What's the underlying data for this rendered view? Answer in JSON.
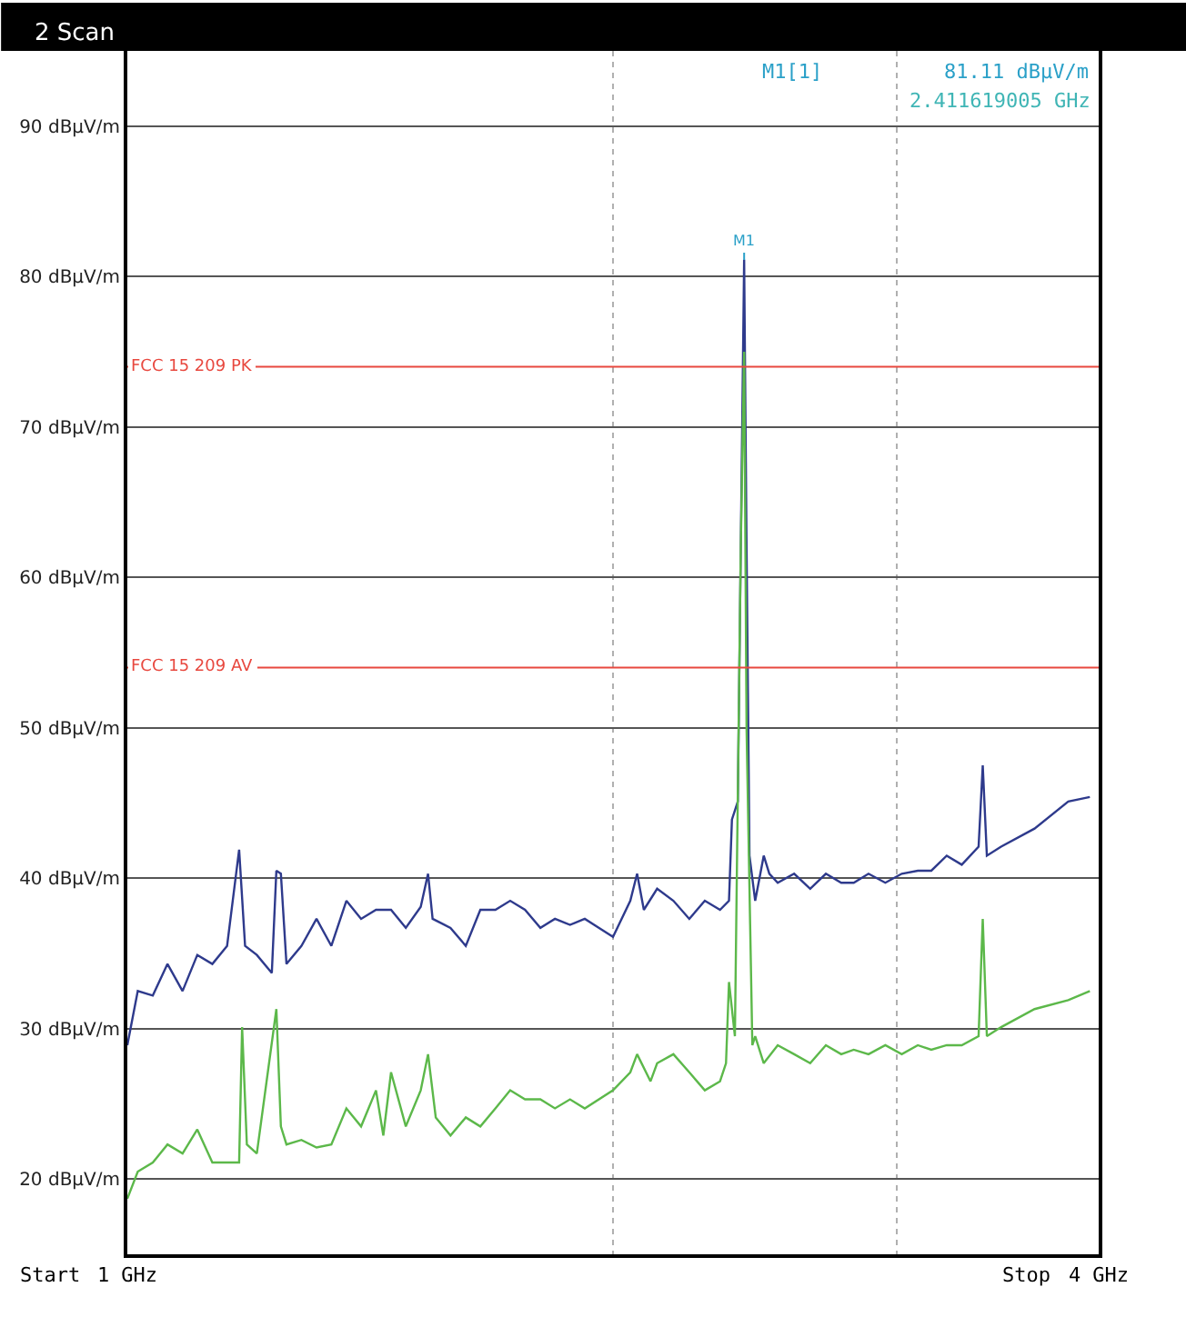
{
  "chart_data": {
    "type": "line",
    "title": "2 Scan",
    "xlim": [
      1,
      4
    ],
    "log": "x",
    "ylim": [
      15,
      95
    ],
    "xticks": [
      {
        "value": 1,
        "label": "1 GHz"
      },
      {
        "value": 2,
        "label": null
      },
      {
        "value": 3,
        "label": null
      },
      {
        "value": 4,
        "label": "4 GHz"
      }
    ],
    "yticks": [
      {
        "value": 20,
        "label": "20 dBµV/m"
      },
      {
        "value": 30,
        "label": "30 dBµV/m"
      },
      {
        "value": 40,
        "label": "40 dBµV/m"
      },
      {
        "value": 50,
        "label": "50 dBµV/m"
      },
      {
        "value": 60,
        "label": "60 dBµV/m"
      },
      {
        "value": 70,
        "label": "70 dBµV/m"
      },
      {
        "value": 80,
        "label": "80 dBµV/m"
      },
      {
        "value": 90,
        "label": "90 dBµV/m"
      }
    ],
    "grid": true,
    "marker": "none",
    "line_style": "solid",
    "series": [
      {
        "color": "#2e3a8c",
        "x": [
          1.0,
          1.015,
          1.037,
          1.059,
          1.082,
          1.105,
          1.129,
          1.153,
          1.173,
          1.183,
          1.203,
          1.229,
          1.237,
          1.245,
          1.255,
          1.282,
          1.31,
          1.338,
          1.367,
          1.396,
          1.426,
          1.457,
          1.488,
          1.52,
          1.536,
          1.546,
          1.586,
          1.621,
          1.655,
          1.691,
          1.727,
          1.764,
          1.803,
          1.841,
          1.881,
          1.921,
          2.0,
          2.05,
          2.07,
          2.09,
          2.13,
          2.18,
          2.23,
          2.28,
          2.33,
          2.36,
          2.37,
          2.39,
          2.4,
          2.4116,
          2.42,
          2.43,
          2.45,
          2.48,
          2.5,
          2.53,
          2.59,
          2.65,
          2.71,
          2.77,
          2.82,
          2.88,
          2.95,
          3.02,
          3.09,
          3.15,
          3.22,
          3.29,
          3.37,
          3.39,
          3.41,
          3.48,
          3.65,
          3.83,
          3.95
        ],
        "values": [
          28.9,
          32.5,
          32.2,
          34.3,
          32.5,
          34.9,
          34.3,
          35.5,
          41.9,
          35.5,
          34.9,
          33.7,
          40.5,
          40.3,
          34.3,
          35.5,
          37.3,
          35.5,
          38.5,
          37.3,
          37.9,
          37.9,
          36.7,
          38.1,
          40.3,
          37.3,
          36.7,
          35.5,
          37.9,
          37.9,
          38.5,
          37.9,
          36.7,
          37.3,
          36.9,
          37.3,
          36.1,
          38.5,
          40.3,
          37.9,
          39.3,
          38.5,
          37.3,
          38.5,
          37.9,
          38.5,
          43.9,
          45.1,
          61.9,
          81.11,
          61.9,
          41.5,
          38.5,
          41.5,
          40.3,
          39.7,
          40.3,
          39.3,
          40.3,
          39.7,
          39.7,
          40.3,
          39.7,
          40.3,
          40.5,
          40.5,
          41.5,
          40.9,
          42.1,
          47.5,
          41.5,
          42.1,
          43.3,
          45.1,
          45.4
        ]
      },
      {
        "color": "#5cb84a",
        "x": [
          1.0,
          1.015,
          1.037,
          1.059,
          1.082,
          1.105,
          1.129,
          1.153,
          1.173,
          1.178,
          1.186,
          1.203,
          1.237,
          1.245,
          1.255,
          1.282,
          1.31,
          1.338,
          1.367,
          1.396,
          1.426,
          1.441,
          1.457,
          1.488,
          1.52,
          1.536,
          1.553,
          1.586,
          1.621,
          1.655,
          1.691,
          1.727,
          1.764,
          1.803,
          1.841,
          1.881,
          1.921,
          2.0,
          2.05,
          2.07,
          2.11,
          2.13,
          2.18,
          2.23,
          2.28,
          2.33,
          2.35,
          2.36,
          2.38,
          2.4,
          2.4116,
          2.42,
          2.44,
          2.45,
          2.48,
          2.53,
          2.59,
          2.65,
          2.71,
          2.77,
          2.82,
          2.88,
          2.95,
          3.02,
          3.09,
          3.15,
          3.22,
          3.29,
          3.37,
          3.39,
          3.41,
          3.48,
          3.65,
          3.83,
          3.95
        ],
        "values": [
          18.7,
          20.5,
          21.1,
          22.3,
          21.7,
          23.3,
          21.1,
          21.1,
          21.1,
          30.1,
          22.3,
          21.7,
          31.3,
          23.5,
          22.3,
          22.6,
          22.1,
          22.3,
          24.7,
          23.5,
          25.9,
          22.9,
          27.1,
          23.5,
          25.9,
          28.3,
          24.1,
          22.9,
          24.1,
          23.5,
          24.7,
          25.9,
          25.3,
          25.3,
          24.7,
          25.3,
          24.7,
          25.9,
          27.1,
          28.3,
          26.5,
          27.7,
          28.3,
          27.1,
          25.9,
          26.5,
          27.7,
          33.1,
          29.5,
          61.9,
          75.0,
          49.9,
          28.9,
          29.5,
          27.7,
          28.9,
          28.3,
          27.7,
          28.9,
          28.3,
          28.6,
          28.3,
          28.9,
          28.3,
          28.9,
          28.6,
          28.9,
          28.9,
          29.5,
          37.3,
          29.5,
          30.1,
          31.3,
          31.9,
          32.5
        ]
      }
    ],
    "ref_lines": [
      {
        "axis": "y",
        "value": 74,
        "label": "FCC 15 209 PK",
        "color": "#e8483f"
      },
      {
        "axis": "y",
        "value": 54,
        "label": "FCC 15 209 AV",
        "color": "#e8483f"
      }
    ],
    "annotations": [
      {
        "text": "M1",
        "x": 2.4116,
        "y": 81.11
      },
      "M1[1]",
      "81.11 dBµV/m",
      "2.411619005 GHz",
      "Start",
      "Stop"
    ]
  }
}
